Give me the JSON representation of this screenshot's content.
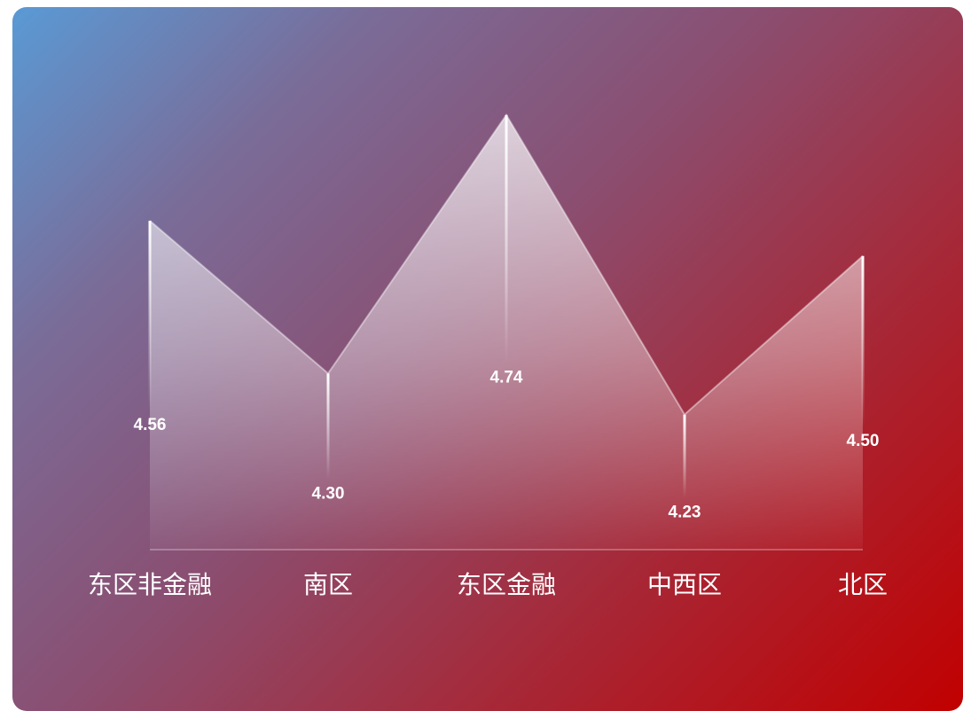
{
  "chart_data": {
    "type": "area",
    "categories": [
      "东区非金融",
      "南区",
      "东区金融",
      "中西区",
      "北区"
    ],
    "values": [
      4.56,
      4.3,
      4.74,
      4.23,
      4.5
    ],
    "value_labels": [
      "4.56",
      "4.30",
      "4.74",
      "4.23",
      "4.50"
    ],
    "ylim": [
      4.0,
      4.8
    ],
    "grid": false,
    "legend": "none",
    "colors": {
      "background_start": "#5a9ad5",
      "background_end": "#c10000",
      "fill_top": "#ffffff",
      "label_text": "#ffffff"
    }
  }
}
